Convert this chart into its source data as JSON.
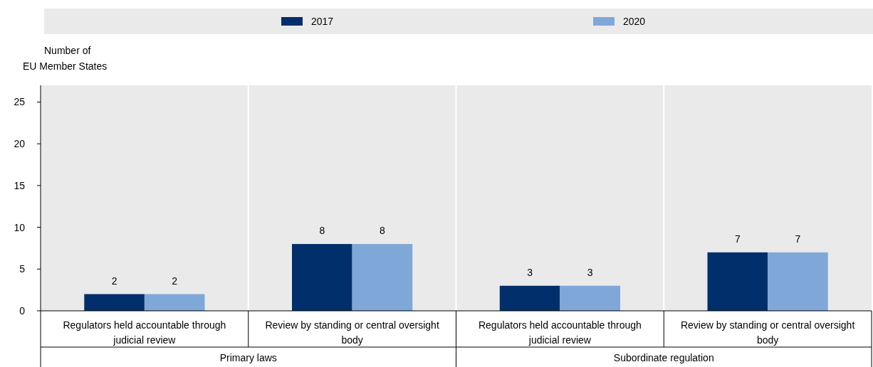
{
  "chart_data": {
    "type": "bar",
    "ylabel": "Number of\nEU Member States",
    "categories": [
      "Regulators held accountable through judicial review",
      "Review by standing or central oversight body",
      "Regulators held accountable through judicial review",
      "Review by standing or central oversight body"
    ],
    "series": [
      {
        "name": "2017",
        "color": "#002f6c",
        "values": [
          2,
          8,
          3,
          7
        ]
      },
      {
        "name": "2020",
        "color": "#7fa8d9",
        "values": [
          2,
          8,
          3,
          7
        ]
      }
    ],
    "annotations": [
      "Primary laws",
      "Subordinate regulation"
    ],
    "ylim": [
      0,
      27
    ],
    "yticks": [
      0,
      5,
      10,
      15,
      20,
      25
    ],
    "grid": false,
    "legend": "top",
    "data_labels": true
  }
}
